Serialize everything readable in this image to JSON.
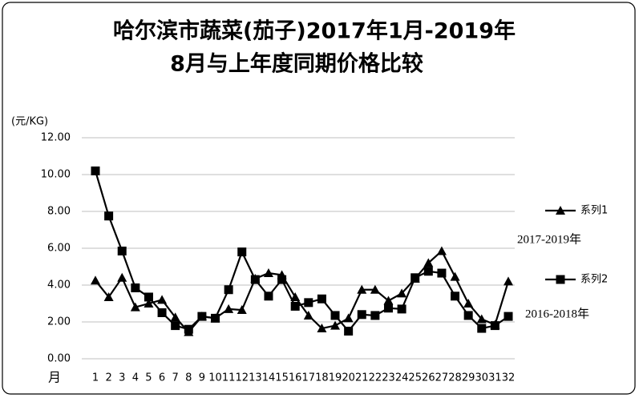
{
  "chart_data": {
    "type": "line",
    "title": "哈尔滨市蔬菜(茄子)2017年1月-2019年",
    "subtitle": "8月与上年度同期价格比较",
    "y_axis_label": "(元/KG)",
    "x_axis_label": "月",
    "categories": [
      "1",
      "2",
      "3",
      "4",
      "5",
      "6",
      "7",
      "8",
      "9",
      "10",
      "11",
      "12",
      "13",
      "14",
      "15",
      "16",
      "17",
      "18",
      "19",
      "20",
      "21",
      "22",
      "23",
      "24",
      "25",
      "26",
      "27",
      "28",
      "29",
      "30",
      "31",
      "32"
    ],
    "series": [
      {
        "name": "系列1",
        "color": "#000000",
        "marker": "triangle",
        "values": [
          4.25,
          3.35,
          4.4,
          2.8,
          3.0,
          3.2,
          2.25,
          1.45,
          2.3,
          2.2,
          2.7,
          2.65,
          4.35,
          4.65,
          4.55,
          3.35,
          2.35,
          1.65,
          1.8,
          2.2,
          3.75,
          3.75,
          3.15,
          3.55,
          4.35,
          5.2,
          5.85,
          4.45,
          3.0,
          2.15,
          1.85,
          4.2
        ]
      },
      {
        "name": "系列2",
        "color": "#000000",
        "marker": "square",
        "values": [
          10.2,
          7.75,
          5.85,
          3.85,
          3.35,
          2.5,
          1.8,
          1.6,
          2.3,
          2.2,
          3.75,
          5.8,
          4.3,
          3.4,
          4.3,
          2.85,
          3.05,
          3.25,
          2.35,
          1.5,
          2.4,
          2.35,
          2.75,
          2.7,
          4.4,
          4.75,
          4.65,
          3.4,
          2.35,
          1.65,
          1.8,
          2.3
        ]
      }
    ],
    "annotations": [
      "2017-2019年",
      "2016-2018年"
    ],
    "ylim": [
      0,
      12
    ],
    "yticks": [
      {
        "value": 0,
        "label": "0.00"
      },
      {
        "value": 2,
        "label": "2.00"
      },
      {
        "value": 4,
        "label": "4.00"
      },
      {
        "value": 6,
        "label": "6.00"
      },
      {
        "value": 8,
        "label": "8.00"
      },
      {
        "value": 10,
        "label": "10.00"
      },
      {
        "value": 12,
        "label": "12.00"
      }
    ],
    "grid": true
  }
}
